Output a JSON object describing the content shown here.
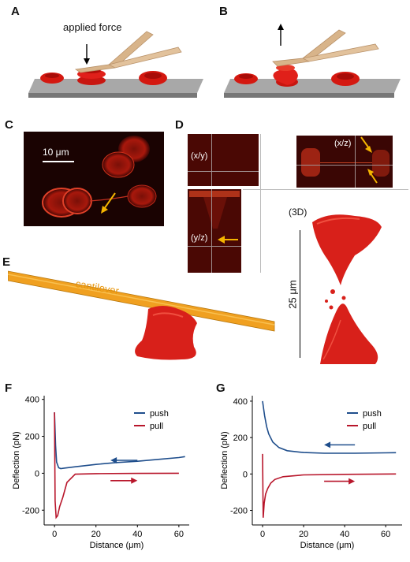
{
  "panels": {
    "a": {
      "letter": "A",
      "annotation": "applied force"
    },
    "b": {
      "letter": "B"
    },
    "c": {
      "letter": "C",
      "scale_bar": "10 μm"
    },
    "d": {
      "letter": "D",
      "views": {
        "xy": "(x/y)",
        "xz": "(x/z)",
        "yz": "(y/z)",
        "three_d": "(3D)"
      },
      "scale_bar": "25 μm"
    },
    "e": {
      "letter": "E",
      "cantilever_label": "cantilever"
    },
    "f": {
      "letter": "F"
    },
    "g": {
      "letter": "G"
    }
  },
  "colors": {
    "cell_red": "#e0201a",
    "cantilever_tan": "#d8b48a",
    "cantilever_orange": "#f0a020",
    "push": "#1f4e8c",
    "pull": "#b8162b",
    "arrow_yellow": "#f4b400"
  },
  "chart_data": [
    {
      "type": "line",
      "panel": "F",
      "xlabel": "Distance (μm)",
      "ylabel": "Deflection (pN)",
      "xlim": [
        -5,
        65
      ],
      "ylim": [
        -280,
        420
      ],
      "x_ticks": [
        0,
        20,
        40,
        60
      ],
      "y_ticks": [
        -200,
        0,
        200,
        400
      ],
      "legend": "top-right",
      "series": [
        {
          "name": "push",
          "x": [
            0,
            0.5,
            1,
            2,
            3,
            5,
            10,
            20,
            30,
            40,
            50,
            60,
            63
          ],
          "y": [
            330,
            150,
            60,
            30,
            25,
            28,
            35,
            48,
            58,
            65,
            75,
            85,
            90
          ]
        },
        {
          "name": "pull",
          "x": [
            0,
            0.3,
            0.8,
            1.5,
            2.5,
            4,
            6,
            10,
            20,
            40,
            60
          ],
          "y": [
            330,
            -150,
            -240,
            -230,
            -180,
            -130,
            -50,
            -5,
            -2,
            -1,
            0
          ]
        }
      ]
    },
    {
      "type": "line",
      "panel": "G",
      "xlabel": "Distance (μm)",
      "ylabel": "Deflection (pN)",
      "xlim": [
        -5,
        68
      ],
      "ylim": [
        -280,
        430
      ],
      "x_ticks": [
        0,
        20,
        40,
        60
      ],
      "y_ticks": [
        -200,
        0,
        200,
        400
      ],
      "legend": "top-right",
      "series": [
        {
          "name": "push",
          "x": [
            0,
            0.5,
            1,
            2,
            3,
            5,
            8,
            12,
            20,
            30,
            45,
            60,
            65
          ],
          "y": [
            400,
            360,
            320,
            260,
            220,
            175,
            145,
            128,
            118,
            114,
            114,
            116,
            117
          ]
        },
        {
          "name": "pull",
          "x": [
            0,
            0.3,
            0.8,
            1.5,
            2.5,
            4,
            6,
            10,
            20,
            40,
            65
          ],
          "y": [
            110,
            -240,
            -160,
            -110,
            -80,
            -50,
            -30,
            -15,
            -5,
            -2,
            0
          ]
        }
      ]
    }
  ]
}
